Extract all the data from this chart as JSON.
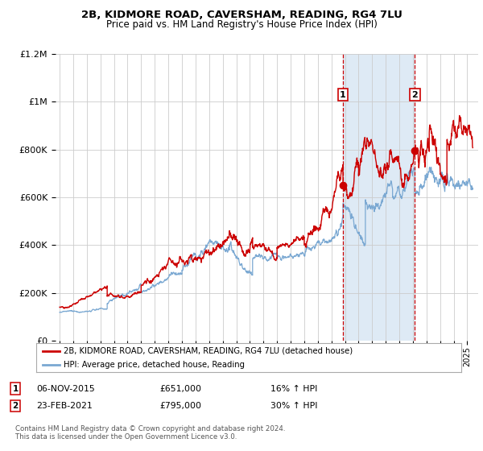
{
  "title1": "2B, KIDMORE ROAD, CAVERSHAM, READING, RG4 7LU",
  "title2": "Price paid vs. HM Land Registry's House Price Index (HPI)",
  "legend1": "2B, KIDMORE ROAD, CAVERSHAM, READING, RG4 7LU (detached house)",
  "legend2": "HPI: Average price, detached house, Reading",
  "annotation1_date": "06-NOV-2015",
  "annotation1_price": "£651,000",
  "annotation1_hpi": "16% ↑ HPI",
  "annotation1_year": 2015.85,
  "annotation1_value": 651000,
  "annotation2_date": "23-FEB-2021",
  "annotation2_price": "£795,000",
  "annotation2_hpi": "30% ↑ HPI",
  "annotation2_year": 2021.14,
  "annotation2_value": 795000,
  "ylim": [
    0,
    1200000
  ],
  "xlim_start": 1994.7,
  "xlim_end": 2025.8,
  "red_line_color": "#cc0000",
  "blue_line_color": "#7aa8d2",
  "shade_color": "#deeaf5",
  "dashed_line_color": "#cc0000",
  "background_color": "#ffffff",
  "grid_color": "#cccccc",
  "footer": "Contains HM Land Registry data © Crown copyright and database right 2024.\nThis data is licensed under the Open Government Licence v3.0."
}
